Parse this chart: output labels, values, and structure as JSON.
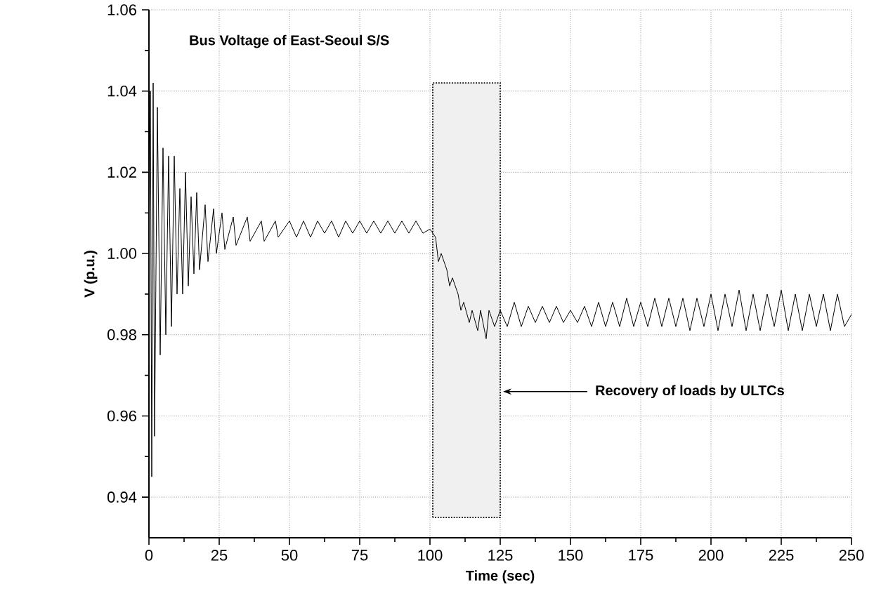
{
  "chart_data": {
    "type": "line",
    "title": "Bus Voltage of East-Seoul S/S",
    "xlabel": "Time (sec)",
    "ylabel": "V (p.u.)",
    "xlim": [
      0,
      250
    ],
    "ylim": [
      0.93,
      1.06
    ],
    "xticks": [
      0,
      25,
      50,
      75,
      100,
      125,
      150,
      175,
      200,
      225,
      250
    ],
    "yticks": [
      {
        "value": 0.94,
        "label": "0.94"
      },
      {
        "value": 0.96,
        "label": "0.96"
      },
      {
        "value": 0.98,
        "label": "0.98"
      },
      {
        "value": 1.0,
        "label": "1.00"
      },
      {
        "value": 1.02,
        "label": "1.02"
      },
      {
        "value": 1.04,
        "label": "1.04"
      },
      {
        "value": 1.06,
        "label": "1.06"
      }
    ],
    "grid": true,
    "marker": "none",
    "line_style": "solid",
    "bands": [
      {
        "axis": "x",
        "from": 101,
        "to": 125,
        "color": "#f0f0f0"
      }
    ],
    "annotations": [
      {
        "text": "Recovery of loads by ULTCs",
        "x": 125,
        "y": 0.966
      }
    ],
    "series": [
      {
        "color": "#000000",
        "x": [
          0,
          0.5,
          1,
          1.5,
          2,
          3,
          4,
          5,
          6,
          7,
          8,
          9,
          10,
          11,
          12,
          13,
          14,
          15,
          16,
          17,
          18,
          20,
          21,
          23,
          24,
          26,
          27,
          30,
          31,
          35,
          36,
          40,
          41,
          45,
          46,
          50,
          52.5,
          55,
          57.5,
          60,
          62.5,
          65,
          67.5,
          70,
          72.5,
          75,
          77.5,
          80,
          82.5,
          85,
          87.5,
          90,
          92.5,
          95,
          97.5,
          100,
          102,
          103,
          104,
          106,
          107,
          108,
          110,
          111,
          112,
          114,
          115,
          117,
          118,
          120,
          121,
          123,
          125,
          127.5,
          130,
          132.5,
          135,
          137.5,
          140,
          142.5,
          145,
          147.5,
          150,
          152.5,
          155,
          157.5,
          160,
          162.5,
          165,
          167.5,
          170,
          172.5,
          175,
          177.5,
          180,
          182.5,
          185,
          187.5,
          190,
          192.5,
          195,
          197.5,
          200,
          202.5,
          205,
          207.5,
          210,
          212.5,
          215,
          217.5,
          220,
          222.5,
          225,
          227.5,
          230,
          232.5,
          235,
          237.5,
          240,
          242.5,
          245,
          247.5,
          250
        ],
        "values": [
          1.0,
          1.04,
          0.945,
          1.042,
          0.955,
          1.036,
          0.975,
          1.026,
          0.98,
          1.024,
          0.982,
          1.024,
          0.99,
          1.016,
          0.99,
          1.02,
          0.992,
          1.014,
          0.995,
          1.015,
          0.996,
          1.012,
          0.998,
          1.011,
          1.0,
          1.01,
          1.001,
          1.009,
          1.002,
          1.009,
          1.003,
          1.008,
          1.003,
          1.008,
          1.004,
          1.008,
          1.004,
          1.008,
          1.004,
          1.008,
          1.005,
          1.008,
          1.004,
          1.008,
          1.005,
          1.008,
          1.005,
          1.008,
          1.005,
          1.008,
          1.005,
          1.008,
          1.005,
          1.008,
          1.005,
          1.006,
          1.004,
          0.998,
          1.0,
          0.996,
          0.992,
          0.994,
          0.99,
          0.986,
          0.988,
          0.983,
          0.986,
          0.981,
          0.986,
          0.979,
          0.986,
          0.982,
          0.986,
          0.982,
          0.988,
          0.982,
          0.987,
          0.983,
          0.987,
          0.983,
          0.987,
          0.983,
          0.986,
          0.983,
          0.987,
          0.982,
          0.988,
          0.982,
          0.988,
          0.982,
          0.989,
          0.982,
          0.988,
          0.982,
          0.989,
          0.982,
          0.989,
          0.982,
          0.989,
          0.981,
          0.989,
          0.982,
          0.99,
          0.981,
          0.99,
          0.982,
          0.991,
          0.981,
          0.99,
          0.981,
          0.99,
          0.982,
          0.991,
          0.981,
          0.99,
          0.981,
          0.99,
          0.982,
          0.99,
          0.981,
          0.99,
          0.982,
          0.985
        ]
      }
    ]
  }
}
